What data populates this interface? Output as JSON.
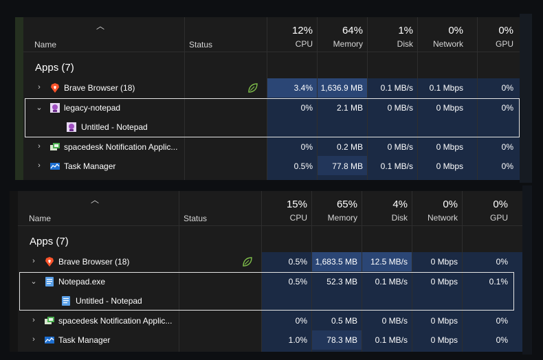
{
  "top_panel": {
    "header": {
      "name": "Name",
      "status": "Status",
      "columns": [
        {
          "key": "cpu",
          "percent": "12%",
          "label": "CPU"
        },
        {
          "key": "memory",
          "percent": "64%",
          "label": "Memory"
        },
        {
          "key": "disk",
          "percent": "1%",
          "label": "Disk"
        },
        {
          "key": "network",
          "percent": "0%",
          "label": "Network"
        },
        {
          "key": "gpu",
          "percent": "0%",
          "label": "GPU"
        }
      ]
    },
    "group_label": "Apps (7)",
    "rows": [
      {
        "name": "Brave Browser (18)",
        "icon": "brave-icon",
        "expanded": false,
        "status_icon": "eco-leaf-icon",
        "cpu": "3.4%",
        "memory": "1,636.9 MB",
        "disk": "0.1 MB/s",
        "network": "0.1 Mbps",
        "gpu": "0%"
      },
      {
        "name": "legacy-notepad",
        "icon": "legacy-notepad-icon",
        "expanded": true,
        "cpu": "0%",
        "memory": "2.1 MB",
        "disk": "0 MB/s",
        "network": "0 Mbps",
        "gpu": "0%"
      },
      {
        "name": "Untitled - Notepad",
        "icon": "legacy-notepad-icon",
        "child": true
      },
      {
        "name": "spacedesk Notification Applic...",
        "icon": "spacedesk-icon",
        "expanded": false,
        "cpu": "0%",
        "memory": "0.2 MB",
        "disk": "0 MB/s",
        "network": "0 Mbps",
        "gpu": "0%"
      },
      {
        "name": "Task Manager",
        "icon": "task-manager-icon",
        "expanded": false,
        "cpu": "0.5%",
        "memory": "77.8 MB",
        "disk": "0.1 MB/s",
        "network": "0 Mbps",
        "gpu": "0%"
      }
    ]
  },
  "bottom_panel": {
    "header": {
      "name": "Name",
      "status": "Status",
      "columns": [
        {
          "key": "cpu",
          "percent": "15%",
          "label": "CPU"
        },
        {
          "key": "memory",
          "percent": "65%",
          "label": "Memory"
        },
        {
          "key": "disk",
          "percent": "4%",
          "label": "Disk"
        },
        {
          "key": "network",
          "percent": "0%",
          "label": "Network"
        },
        {
          "key": "gpu",
          "percent": "0%",
          "label": "GPU"
        }
      ]
    },
    "group_label": "Apps (7)",
    "rows": [
      {
        "name": "Brave Browser (18)",
        "icon": "brave-icon",
        "expanded": false,
        "status_icon": "eco-leaf-icon",
        "cpu": "0.5%",
        "memory": "1,683.5 MB",
        "disk": "12.5 MB/s",
        "network": "0 Mbps",
        "gpu": "0%"
      },
      {
        "name": "Notepad.exe",
        "icon": "notepad-icon",
        "expanded": true,
        "cpu": "0.5%",
        "memory": "52.3 MB",
        "disk": "0.1 MB/s",
        "network": "0 Mbps",
        "gpu": "0.1%"
      },
      {
        "name": "Untitled - Notepad",
        "icon": "notepad-icon",
        "child": true
      },
      {
        "name": "spacedesk Notification Applic...",
        "icon": "spacedesk-icon",
        "expanded": false,
        "cpu": "0%",
        "memory": "0.5 MB",
        "disk": "0 MB/s",
        "network": "0 Mbps",
        "gpu": "0%"
      },
      {
        "name": "Task Manager",
        "icon": "task-manager-icon",
        "expanded": false,
        "cpu": "1.0%",
        "memory": "78.3 MB",
        "disk": "0.1 MB/s",
        "network": "0 Mbps",
        "gpu": "0%"
      }
    ]
  },
  "colors": {
    "panel_bg": "#1c1c1c",
    "heat_light": "#1b2a44",
    "heat_mid": "#22365a",
    "heat_strong": "#2b4675",
    "focus_border": "#e6e6e6"
  }
}
